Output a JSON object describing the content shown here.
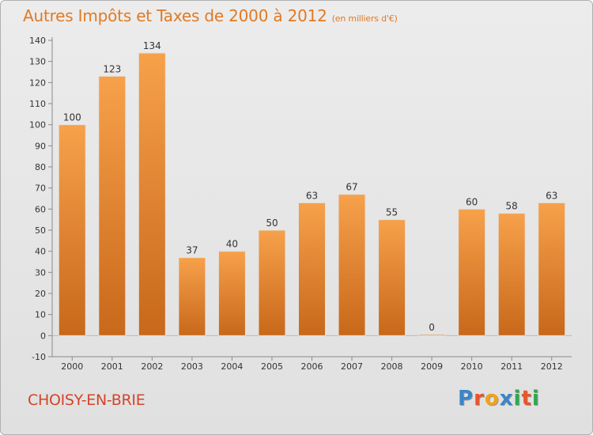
{
  "title": "Autres Impôts et Taxes de 2000 à 2012",
  "title_unit": "(en milliers d'€)",
  "location": "CHOISY-EN-BRIE",
  "logo": {
    "letters": [
      "P",
      "r",
      "o",
      "x",
      "i",
      "t",
      "i"
    ],
    "colors": [
      "#3a86c8",
      "#e8552b",
      "#f2a21a",
      "#3a86c8",
      "#2fa84f",
      "#e8552b",
      "#2fa84f"
    ]
  },
  "colors": {
    "bar_light": "#f7a14b",
    "bar_dark": "#c8681a",
    "title": "#e07a24",
    "location": "#d4442a"
  },
  "chart_data": {
    "type": "bar",
    "title": "Autres Impôts et Taxes de 2000 à 2012",
    "categories": [
      "2000",
      "2001",
      "2002",
      "2003",
      "2004",
      "2005",
      "2006",
      "2007",
      "2008",
      "2009",
      "2010",
      "2011",
      "2012"
    ],
    "values": [
      100,
      123,
      134,
      37,
      40,
      50,
      63,
      67,
      55,
      0,
      60,
      58,
      63
    ],
    "xlabel": "",
    "ylabel": "",
    "ylim": [
      -10,
      140
    ],
    "yticks": [
      -10,
      0,
      10,
      20,
      30,
      40,
      50,
      60,
      70,
      80,
      90,
      100,
      110,
      120,
      130,
      140
    ],
    "grid": false,
    "legend": "none"
  }
}
